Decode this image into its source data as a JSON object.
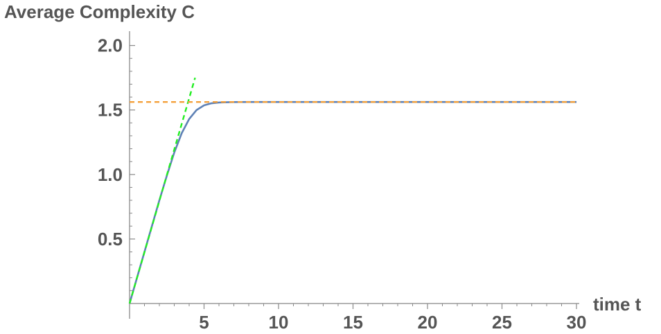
{
  "chart_data": {
    "type": "line",
    "title": "Average Complexity C",
    "xlabel": "time t",
    "ylabel": "",
    "xlim": [
      0,
      30
    ],
    "ylim": [
      0,
      2.1
    ],
    "xticks": [
      5,
      10,
      15,
      20,
      25,
      30
    ],
    "xtick_labels": [
      "5",
      "10",
      "15",
      "20",
      "25",
      "30"
    ],
    "yticks": [
      0.5,
      1.0,
      1.5,
      2.0
    ],
    "ytick_labels": [
      "0.5",
      "1.0",
      "1.5",
      "2.0"
    ],
    "grid": false,
    "series": [
      {
        "style": "solid",
        "color": "#5e81b5",
        "x": [
          0,
          0.5,
          1,
          1.5,
          2,
          2.5,
          3,
          3.5,
          4,
          4.5,
          5,
          5.5,
          6,
          6.5,
          7,
          8,
          9,
          10,
          15,
          20,
          25,
          30
        ],
        "y": [
          0,
          0.2,
          0.4,
          0.6,
          0.8,
          0.99,
          1.17,
          1.32,
          1.43,
          1.5,
          1.536,
          1.552,
          1.558,
          1.56,
          1.561,
          1.562,
          1.562,
          1.562,
          1.562,
          1.562,
          1.562,
          1.562
        ]
      },
      {
        "style": "dashed",
        "color": "#22ee22",
        "x": [
          0,
          4.4
        ],
        "y": [
          0,
          1.75
        ]
      },
      {
        "style": "dashed",
        "color": "#f4a03a",
        "x": [
          0,
          30
        ],
        "y": [
          1.562,
          1.562
        ]
      }
    ]
  }
}
